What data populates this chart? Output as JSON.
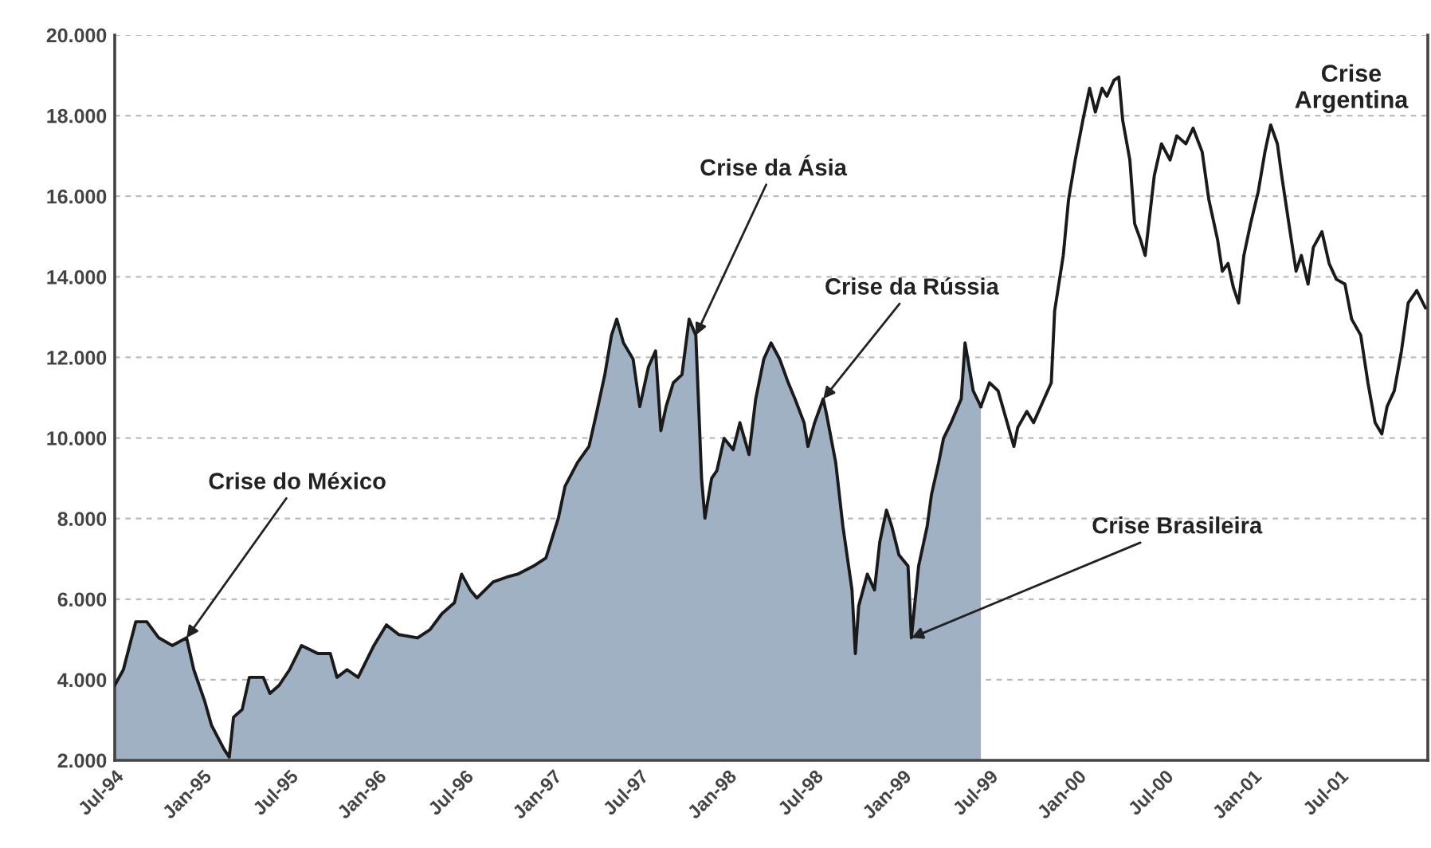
{
  "chart_data": {
    "type": "line",
    "xlim": [
      "1994-07-01",
      "2002-01-01"
    ],
    "xticks": [
      {
        "value": "1994-07-01",
        "label": "Jul-94"
      },
      {
        "value": "1995-01-01",
        "label": "Jan-95"
      },
      {
        "value": "1995-07-01",
        "label": "Jul-95"
      },
      {
        "value": "1996-01-01",
        "label": "Jan-96"
      },
      {
        "value": "1996-07-01",
        "label": "Jul-96"
      },
      {
        "value": "1997-01-01",
        "label": "Jan-97"
      },
      {
        "value": "1997-07-01",
        "label": "Jul-97"
      },
      {
        "value": "1998-01-01",
        "label": "Jan-98"
      },
      {
        "value": "1998-07-01",
        "label": "Jul-98"
      },
      {
        "value": "1999-01-01",
        "label": "Jan-99"
      },
      {
        "value": "1999-07-01",
        "label": "Jul-99"
      },
      {
        "value": "2000-01-01",
        "label": "Jan-00"
      },
      {
        "value": "2000-07-01",
        "label": "Jul-00"
      },
      {
        "value": "2001-01-01",
        "label": "Jan-01"
      },
      {
        "value": "2001-07-01",
        "label": "Jul-01"
      }
    ],
    "ylim": [
      2000,
      20000
    ],
    "yticks": [
      {
        "value": 2000,
        "label": "2.000"
      },
      {
        "value": 4000,
        "label": "4.000"
      },
      {
        "value": 6000,
        "label": "6.000"
      },
      {
        "value": 8000,
        "label": "8.000"
      },
      {
        "value": 10000,
        "label": "10.000"
      },
      {
        "value": 12000,
        "label": "12.000"
      },
      {
        "value": 14000,
        "label": "14.000"
      },
      {
        "value": 16000,
        "label": "16.000"
      },
      {
        "value": 18000,
        "label": "18.000"
      },
      {
        "value": 20000,
        "label": "20.000"
      }
    ],
    "grid": "y",
    "marker": "none",
    "line_style": "solid",
    "series": [
      {
        "type": "area",
        "color": "#9fb1c2",
        "x": [
          "1994-07-01",
          "1994-07-19",
          "1994-08-14",
          "1994-09-06",
          "1994-10-01",
          "1994-10-29",
          "1994-11-28",
          "1994-12-13",
          "1995-01-05",
          "1995-01-19",
          "1995-02-14",
          "1995-02-25",
          "1995-03-06",
          "1995-03-24",
          "1995-04-08",
          "1995-05-07",
          "1995-05-21",
          "1995-06-09",
          "1995-07-01",
          "1995-07-26",
          "1995-08-29",
          "1995-09-24",
          "1995-10-08",
          "1995-10-29",
          "1995-11-21",
          "1995-12-24",
          "1996-01-19",
          "1996-02-14",
          "1996-03-24",
          "1996-04-19",
          "1996-05-14",
          "1996-06-09",
          "1996-06-24",
          "1996-07-12",
          "1996-07-26",
          "1996-08-29",
          "1996-09-27",
          "1996-10-19",
          "1996-11-21",
          "1996-12-17",
          "1997-01-12",
          "1997-01-26",
          "1997-02-21",
          "1997-03-17",
          "1997-04-01",
          "1997-04-19",
          "1997-05-03",
          "1997-05-14",
          "1997-05-28",
          "1997-06-17",
          "1997-07-01",
          "1997-07-19",
          "1997-08-03",
          "1997-08-14",
          "1997-08-25",
          "1997-09-09",
          "1997-09-27",
          "1997-10-12",
          "1997-10-26",
          "1997-11-07",
          "1997-11-14",
          "1997-11-28",
          "1997-12-09",
          "1997-12-24",
          "1998-01-12",
          "1998-01-26",
          "1998-02-14",
          "1998-02-28",
          "1998-03-17",
          "1998-04-01",
          "1998-04-19",
          "1998-05-07",
          "1998-05-21",
          "1998-06-09",
          "1998-06-17",
          "1998-07-01",
          "1998-07-19",
          "1998-07-26",
          "1998-08-14",
          "1998-08-29",
          "1998-09-17",
          "1998-09-24",
          "1998-10-01",
          "1998-10-19",
          "1998-11-03",
          "1998-11-14",
          "1998-11-28",
          "1998-12-09",
          "1998-12-24",
          "1999-01-12",
          "1999-01-19",
          "1999-02-03",
          "1999-02-21",
          "1999-03-02",
          "1999-03-17",
          "1999-03-27",
          "1999-04-12",
          "1999-05-03",
          "1999-05-11",
          "1999-05-28",
          "1999-06-13"
        ],
        "values": [
          3860,
          4250,
          5440,
          5440,
          5040,
          4850,
          5040,
          4250,
          3460,
          2870,
          2280,
          2080,
          3070,
          3260,
          4060,
          4060,
          3660,
          3860,
          4250,
          4850,
          4650,
          4650,
          4060,
          4250,
          4060,
          4850,
          5360,
          5120,
          5040,
          5240,
          5640,
          5910,
          6620,
          6230,
          6030,
          6430,
          6550,
          6620,
          6820,
          7020,
          8010,
          8800,
          9390,
          9790,
          10580,
          11570,
          12550,
          12950,
          12360,
          11960,
          10780,
          11760,
          12160,
          10180,
          10780,
          11370,
          11570,
          12950,
          12550,
          9000,
          8010,
          9000,
          9190,
          9990,
          9710,
          10380,
          9590,
          10970,
          11960,
          12360,
          11960,
          11370,
          10970,
          10380,
          9790,
          10380,
          10970,
          10580,
          9390,
          7810,
          6230,
          4650,
          5830,
          6620,
          6230,
          7420,
          8210,
          7810,
          7100,
          6820,
          5040,
          6820,
          7810,
          8600,
          9390,
          9990,
          10380,
          10970,
          12360,
          11170,
          10780
        ]
      },
      {
        "color": "#1a1a1a",
        "x": [
          "1999-06-13",
          "1999-07-01",
          "1999-07-19",
          "1999-08-07",
          "1999-08-21",
          "1999-08-29",
          "1999-09-17",
          "1999-10-01",
          "1999-10-23",
          "1999-11-07",
          "1999-11-14",
          "1999-12-02",
          "1999-12-13",
          "1999-12-27",
          "2000-01-12",
          "2000-01-26",
          "2000-02-07",
          "2000-02-21",
          "2000-03-02",
          "2000-03-17",
          "2000-03-27",
          "2000-04-04",
          "2000-04-19",
          "2000-04-29",
          "2000-05-11",
          "2000-05-21",
          "2000-06-09",
          "2000-06-24",
          "2000-07-12",
          "2000-07-26",
          "2000-08-14",
          "2000-08-29",
          "2000-09-17",
          "2000-10-01",
          "2000-10-19",
          "2000-10-29",
          "2000-11-10",
          "2000-11-21",
          "2000-12-02",
          "2000-12-13",
          "2000-12-27",
          "2001-01-12",
          "2001-01-26",
          "2001-02-07",
          "2001-02-21",
          "2001-03-02",
          "2001-03-17",
          "2001-04-01",
          "2001-04-12",
          "2001-04-26",
          "2001-05-07",
          "2001-05-25",
          "2001-06-09",
          "2001-06-24",
          "2001-07-12",
          "2001-07-26",
          "2001-08-14",
          "2001-08-29",
          "2001-09-13",
          "2001-09-27",
          "2001-10-08",
          "2001-10-23",
          "2001-11-07",
          "2001-11-21",
          "2001-12-09",
          "2001-12-27"
        ],
        "values": [
          10780,
          11370,
          11170,
          10380,
          9790,
          10260,
          10660,
          10380,
          10970,
          11370,
          13150,
          14530,
          15910,
          16900,
          17890,
          18680,
          18090,
          18680,
          18480,
          18880,
          18960,
          17890,
          16900,
          15320,
          14930,
          14530,
          16510,
          17300,
          16900,
          17500,
          17300,
          17690,
          17100,
          15910,
          14930,
          14140,
          14330,
          13740,
          13350,
          14530,
          15320,
          16110,
          17100,
          17770,
          17300,
          16510,
          15320,
          14140,
          14530,
          13820,
          14730,
          15120,
          14330,
          13940,
          13820,
          12950,
          12550,
          11370,
          10380,
          10100,
          10780,
          11170,
          12160,
          13350,
          13660,
          13230
        ]
      }
    ],
    "annotations": [
      {
        "text": "Crise do México",
        "x": "1994-11-28",
        "y": 5040
      },
      {
        "text": "Crise da Ásia",
        "x": "1997-10-26",
        "y": 12550
      },
      {
        "text": "Crise da Rússia",
        "x": "1998-07-19",
        "y": 10970
      },
      {
        "text": "Crise Brasileira",
        "x": "1999-01-19",
        "y": 5040
      },
      "Crise\nArgentina"
    ]
  }
}
